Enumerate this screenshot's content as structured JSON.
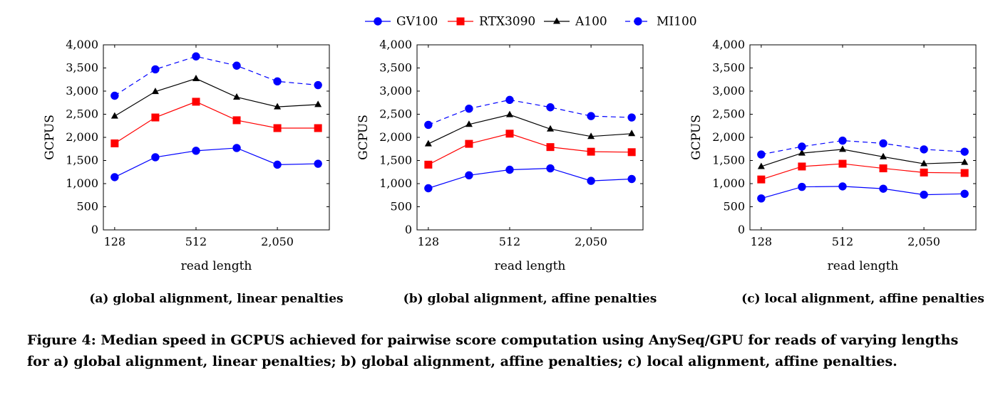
{
  "legend": {
    "entries": [
      {
        "name": "GV100",
        "color": "#0000ff",
        "marker": "circle",
        "dash": false
      },
      {
        "name": "RTX3090",
        "color": "#ff0000",
        "marker": "square",
        "dash": false
      },
      {
        "name": "A100",
        "color": "#000000",
        "marker": "triangle",
        "dash": false
      },
      {
        "name": "MI100",
        "color": "#0000ff",
        "marker": "circle",
        "dash": true
      }
    ]
  },
  "caption": {
    "line1": "Figure 4: Median speed in GCPUS achieved for pairwise score computation using AnySeq/GPU for reads of varying lengths",
    "line2": "for a) global alignment, linear penalties; b) global alignment, affine penalties; c) local alignment, affine penalties."
  },
  "chart_data": [
    {
      "type": "line",
      "title": "(a) global alignment, linear penalties",
      "xlabel": "read length",
      "ylabel": "GCPUS",
      "x": [
        128,
        256,
        512,
        1024,
        2048,
        4096
      ],
      "x_scale": "log2",
      "xticks": [
        128,
        512,
        2048
      ],
      "xtick_labels": [
        "128",
        "512",
        "2,050"
      ],
      "ylim": [
        0,
        4000
      ],
      "yticks": [
        0,
        500,
        1000,
        1500,
        2000,
        2500,
        3000,
        3500,
        4000
      ],
      "ytick_labels": [
        "0",
        "500",
        "1,000",
        "1,500",
        "2,000",
        "2,500",
        "3,000",
        "3,500",
        "4,000"
      ],
      "grid": false,
      "series": [
        {
          "name": "GV100",
          "values": [
            1140,
            1570,
            1710,
            1770,
            1410,
            1430
          ]
        },
        {
          "name": "RTX3090",
          "values": [
            1870,
            2430,
            2770,
            2370,
            2200,
            2200
          ]
        },
        {
          "name": "A100",
          "values": [
            2460,
            2990,
            3270,
            2870,
            2660,
            2710
          ]
        },
        {
          "name": "MI100",
          "values": [
            2900,
            3470,
            3750,
            3550,
            3210,
            3130
          ]
        }
      ]
    },
    {
      "type": "line",
      "title": "(b) global alignment, affine penalties",
      "xlabel": "read length",
      "ylabel": "GCPUS",
      "x": [
        128,
        256,
        512,
        1024,
        2048,
        4096
      ],
      "x_scale": "log2",
      "xticks": [
        128,
        512,
        2048
      ],
      "xtick_labels": [
        "128",
        "512",
        "2,050"
      ],
      "ylim": [
        0,
        4000
      ],
      "yticks": [
        0,
        500,
        1000,
        1500,
        2000,
        2500,
        3000,
        3500,
        4000
      ],
      "ytick_labels": [
        "0",
        "500",
        "1,000",
        "1,500",
        "2,000",
        "2,500",
        "3,000",
        "3,500",
        "4,000"
      ],
      "grid": false,
      "series": [
        {
          "name": "GV100",
          "values": [
            900,
            1180,
            1300,
            1330,
            1060,
            1100
          ]
        },
        {
          "name": "RTX3090",
          "values": [
            1410,
            1860,
            2080,
            1790,
            1690,
            1680
          ]
        },
        {
          "name": "A100",
          "values": [
            1860,
            2280,
            2490,
            2180,
            2020,
            2080
          ]
        },
        {
          "name": "MI100",
          "values": [
            2270,
            2620,
            2810,
            2650,
            2460,
            2430
          ]
        }
      ]
    },
    {
      "type": "line",
      "title": "(c) local alignment, affine penalties",
      "xlabel": "read length",
      "ylabel": "GCPUS",
      "x": [
        128,
        256,
        512,
        1024,
        2048,
        4096
      ],
      "x_scale": "log2",
      "xticks": [
        128,
        512,
        2048
      ],
      "xtick_labels": [
        "128",
        "512",
        "2,050"
      ],
      "ylim": [
        0,
        4000
      ],
      "yticks": [
        0,
        500,
        1000,
        1500,
        2000,
        2500,
        3000,
        3500,
        4000
      ],
      "ytick_labels": [
        "0",
        "500",
        "1,000",
        "1,500",
        "2,000",
        "2,500",
        "3,000",
        "3,500",
        "4,000"
      ],
      "grid": false,
      "series": [
        {
          "name": "GV100",
          "values": [
            680,
            930,
            940,
            890,
            760,
            780
          ]
        },
        {
          "name": "RTX3090",
          "values": [
            1090,
            1370,
            1430,
            1330,
            1240,
            1230
          ]
        },
        {
          "name": "A100",
          "values": [
            1370,
            1660,
            1740,
            1580,
            1430,
            1460
          ]
        },
        {
          "name": "MI100",
          "values": [
            1630,
            1800,
            1930,
            1870,
            1740,
            1690
          ]
        }
      ]
    }
  ]
}
